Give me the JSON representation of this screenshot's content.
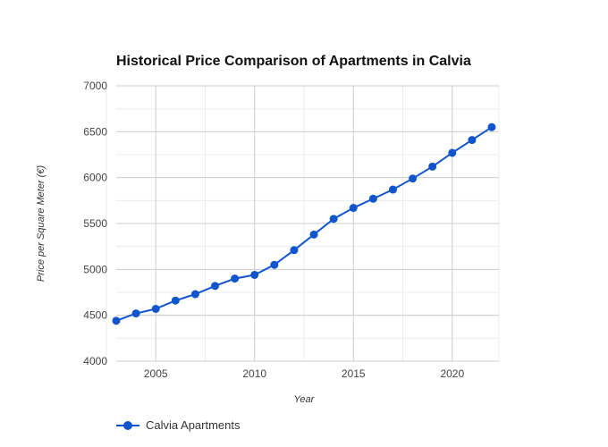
{
  "chart_data": {
    "type": "line",
    "title": "Historical Price Comparison of Apartments in Calvia",
    "xlabel": "Year",
    "ylabel": "Price per Square Meter (€)",
    "xlim": [
      2003,
      2022
    ],
    "ylim": [
      4000,
      7000
    ],
    "x_ticks": [
      2005,
      2010,
      2015,
      2020
    ],
    "y_ticks": [
      4000,
      4500,
      5000,
      5500,
      6000,
      6500,
      7000
    ],
    "grid": true,
    "legend_position": "bottom-left",
    "series": [
      {
        "name": "Calvia Apartments",
        "color": "#1155cc",
        "x": [
          2003,
          2004,
          2005,
          2006,
          2007,
          2008,
          2009,
          2010,
          2011,
          2012,
          2013,
          2014,
          2015,
          2016,
          2017,
          2018,
          2019,
          2020,
          2021,
          2022
        ],
        "y": [
          4440,
          4520,
          4570,
          4660,
          4730,
          4820,
          4900,
          4940,
          5050,
          5210,
          5380,
          5550,
          5670,
          5770,
          5870,
          5990,
          6120,
          6270,
          6410,
          6550
        ]
      }
    ]
  }
}
